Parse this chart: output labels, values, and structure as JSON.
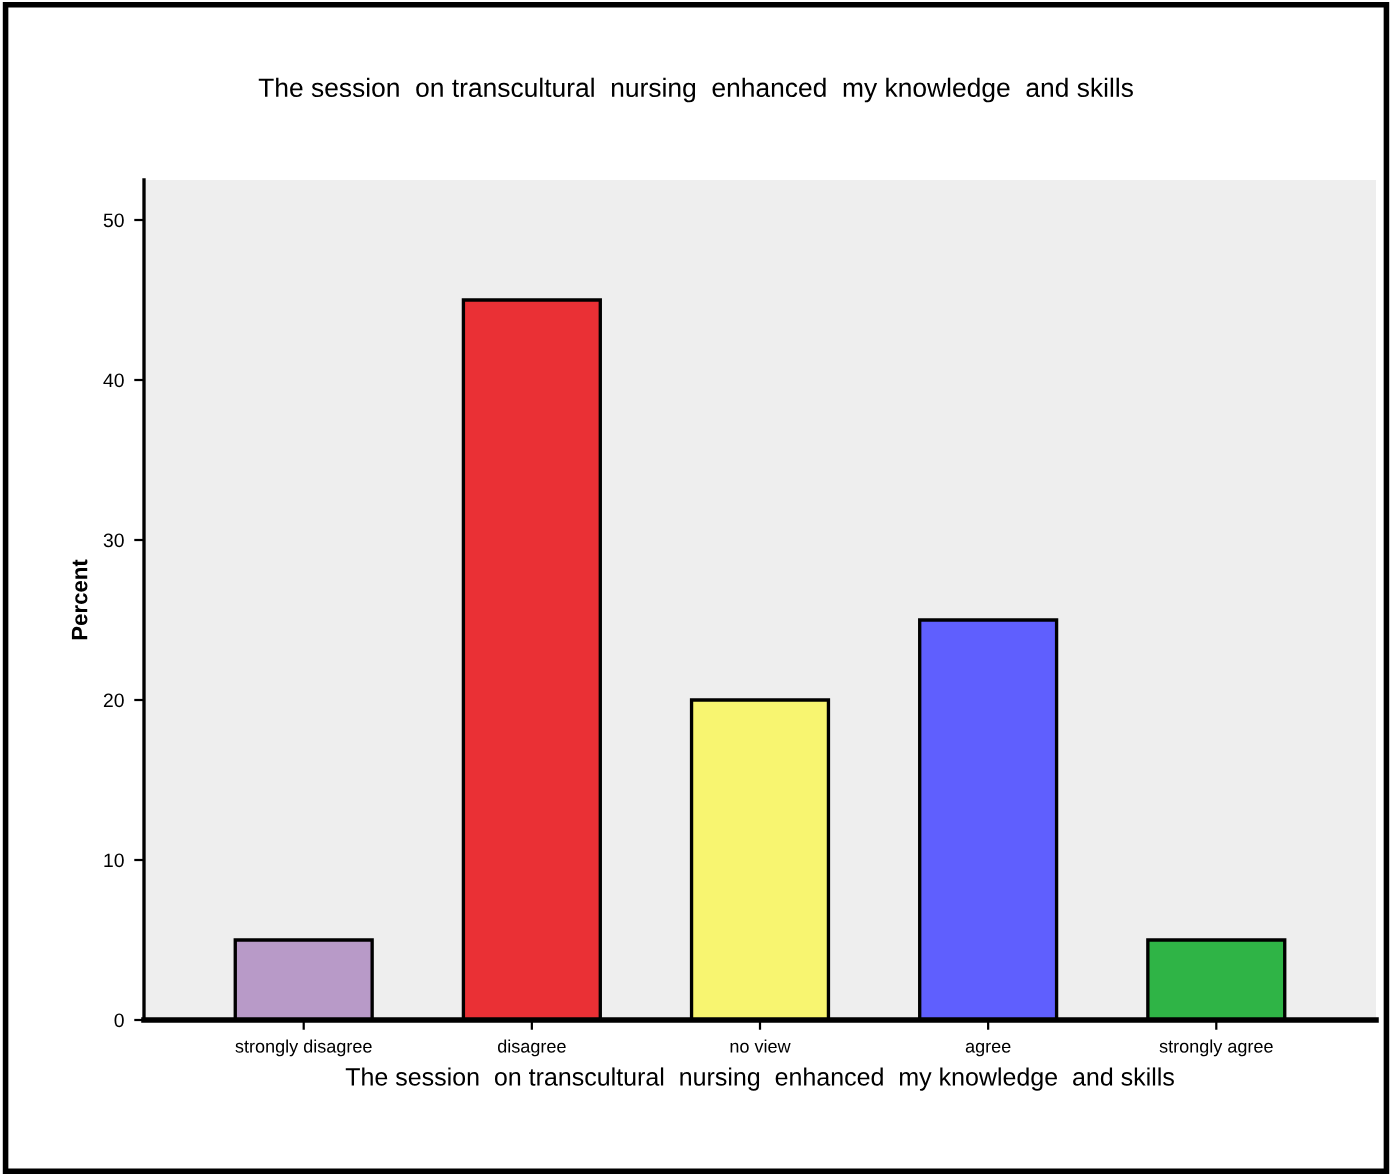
{
  "chart_data": {
    "type": "bar",
    "title": "The session  on transcultural  nursing  enhanced  my knowledge  and skills",
    "xlabel": "The session  on transcultural  nursing  enhanced  my knowledge  and skills",
    "ylabel": "Percent",
    "categories": [
      "strongly disagree",
      "disagree",
      "no view",
      "agree",
      "strongly agree"
    ],
    "values": [
      5,
      45,
      20,
      25,
      5
    ],
    "colors": [
      "#b89ac8",
      "#ea3035",
      "#f8f570",
      "#5f5ffe",
      "#2fb446"
    ],
    "ylim": [
      0,
      52.5
    ],
    "yticks": [
      0,
      10,
      20,
      30,
      40,
      50
    ],
    "grid": false
  }
}
